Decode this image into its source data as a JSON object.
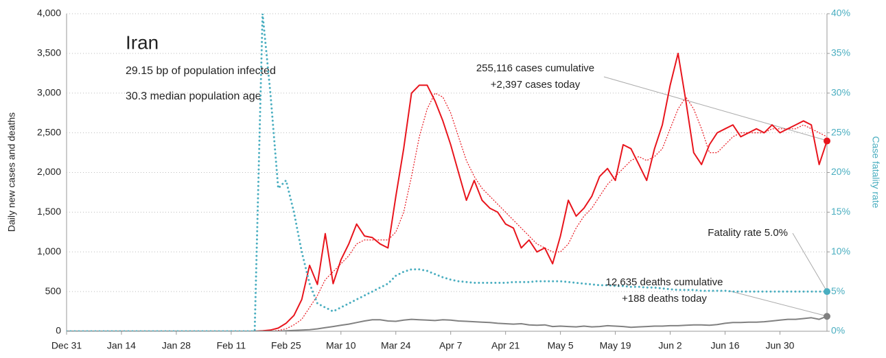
{
  "chart_data": {
    "type": "line",
    "title": "Iran",
    "subtitles": [
      "29.15 bp of population infected",
      "30.3 median population age"
    ],
    "ylabel": "Daily new cases and deaths",
    "y2label": "Case fatality rate",
    "categories": [
      "Dec 31",
      null,
      null,
      null,
      null,
      null,
      null,
      "Jan 14",
      null,
      null,
      null,
      null,
      null,
      null,
      "Jan 28",
      null,
      null,
      null,
      null,
      null,
      null,
      "Feb 11",
      null,
      null,
      null,
      null,
      null,
      null,
      "Feb 25",
      null,
      null,
      null,
      null,
      null,
      null,
      "Mar 10",
      null,
      null,
      null,
      null,
      null,
      null,
      "Mar 24",
      null,
      null,
      null,
      null,
      null,
      null,
      "Apr 7",
      null,
      null,
      null,
      null,
      null,
      null,
      "Apr 21",
      null,
      null,
      null,
      null,
      null,
      null,
      "May 5",
      null,
      null,
      null,
      null,
      null,
      null,
      "May 19",
      null,
      null,
      null,
      null,
      null,
      null,
      "Jun 2",
      null,
      null,
      null,
      null,
      null,
      null,
      "Jun 16",
      null,
      null,
      null,
      null,
      null,
      null,
      "Jun 30",
      null,
      null,
      null,
      null,
      null,
      null
    ],
    "series": [
      {
        "color": "#e8141c",
        "line_style": "solid",
        "width": 2,
        "values": [
          0,
          0,
          0,
          0,
          0,
          0,
          0,
          0,
          0,
          0,
          0,
          0,
          0,
          0,
          0,
          0,
          0,
          0,
          0,
          0,
          0,
          0,
          0,
          0,
          0,
          5,
          15,
          40,
          100,
          200,
          400,
          830,
          590,
          1230,
          600,
          900,
          1100,
          1350,
          1200,
          1180,
          1100,
          1050,
          1700,
          2300,
          3000,
          3100,
          3100,
          2900,
          2650,
          2350,
          2000,
          1650,
          1900,
          1650,
          1550,
          1500,
          1350,
          1300,
          1050,
          1150,
          1000,
          1050,
          850,
          1200,
          1650,
          1450,
          1550,
          1700,
          1950,
          2050,
          1900,
          2350,
          2300,
          2100,
          1900,
          2300,
          2600,
          3100,
          3500,
          2900,
          2250,
          2100,
          2350,
          2500,
          2550,
          2600,
          2450,
          2500,
          2550,
          2500,
          2600,
          2500,
          2550,
          2600,
          2650,
          2600,
          2100,
          2397
        ]
      },
      {
        "color": "#e8141c",
        "line_style": "dotted",
        "width": 1.2,
        "values": [
          0,
          0,
          0,
          0,
          0,
          0,
          0,
          0,
          0,
          0,
          0,
          0,
          0,
          0,
          0,
          0,
          0,
          0,
          0,
          0,
          0,
          0,
          0,
          0,
          0,
          0,
          0,
          10,
          30,
          80,
          150,
          300,
          450,
          650,
          750,
          850,
          950,
          1100,
          1150,
          1150,
          1150,
          1150,
          1250,
          1500,
          1950,
          2450,
          2800,
          3000,
          2950,
          2750,
          2450,
          2150,
          1950,
          1800,
          1700,
          1600,
          1500,
          1400,
          1300,
          1200,
          1100,
          1050,
          1000,
          1000,
          1100,
          1300,
          1450,
          1550,
          1700,
          1850,
          1950,
          2050,
          2150,
          2200,
          2150,
          2200,
          2300,
          2550,
          2800,
          2950,
          2800,
          2550,
          2250,
          2250,
          2350,
          2450,
          2500,
          2500,
          2500,
          2500,
          2550,
          2550,
          2550,
          2550,
          2600,
          2550,
          2500,
          2450
        ]
      },
      {
        "color": "#808080",
        "line_style": "solid",
        "width": 2,
        "values": [
          0,
          0,
          0,
          0,
          0,
          0,
          0,
          0,
          0,
          0,
          0,
          0,
          0,
          0,
          0,
          0,
          0,
          0,
          0,
          0,
          0,
          0,
          0,
          0,
          0,
          0,
          0,
          0,
          5,
          10,
          15,
          20,
          30,
          45,
          60,
          75,
          90,
          110,
          130,
          145,
          145,
          130,
          125,
          140,
          150,
          145,
          140,
          135,
          145,
          140,
          130,
          125,
          120,
          115,
          110,
          100,
          95,
          90,
          95,
          80,
          75,
          80,
          60,
          65,
          60,
          55,
          65,
          55,
          60,
          70,
          65,
          60,
          50,
          55,
          60,
          65,
          65,
          70,
          70,
          75,
          80,
          80,
          75,
          85,
          100,
          110,
          110,
          115,
          115,
          120,
          130,
          140,
          150,
          150,
          160,
          170,
          150,
          188
        ]
      },
      {
        "color": "#4aaec0",
        "line_style": "dotted",
        "width": 3,
        "axis": "y2",
        "values": [
          0,
          0,
          0,
          0,
          0,
          0,
          0,
          0,
          0,
          0,
          0,
          0,
          0,
          0,
          0,
          0,
          0,
          0,
          0,
          0,
          0,
          0,
          0,
          0,
          0,
          40,
          30,
          18,
          19,
          15,
          10,
          6,
          3.5,
          3,
          2.5,
          3,
          3.5,
          4,
          4.5,
          5,
          5.5,
          6,
          7,
          7.5,
          7.8,
          7.8,
          7.6,
          7.2,
          6.8,
          6.5,
          6.3,
          6.2,
          6.1,
          6.1,
          6.1,
          6.1,
          6.1,
          6.2,
          6.2,
          6.2,
          6.3,
          6.3,
          6.3,
          6.3,
          6.2,
          6.1,
          6.0,
          5.9,
          5.8,
          5.8,
          5.7,
          5.7,
          5.6,
          5.6,
          5.5,
          5.5,
          5.4,
          5.3,
          5.2,
          5.2,
          5.2,
          5.1,
          5.1,
          5.1,
          5.1,
          5.0,
          5.0,
          5.0,
          5.0,
          5.0,
          5.0,
          5.0,
          5.0,
          5.0,
          5.0,
          5.0,
          5.0,
          5.0
        ]
      }
    ],
    "ylim": [
      0,
      4000
    ],
    "yticks": [
      0,
      500,
      {
        "value": 1000,
        "label": "1,000"
      },
      {
        "value": 1500,
        "label": "1,500"
      },
      {
        "value": 2000,
        "label": "2,000"
      },
      {
        "value": 2500,
        "label": "2,500"
      },
      {
        "value": 3000,
        "label": "3,000"
      },
      {
        "value": 3500,
        "label": "3,500"
      },
      {
        "value": 4000,
        "label": "4,000"
      }
    ],
    "y2lim": [
      0,
      40
    ],
    "y2ticks": [
      {
        "value": 0,
        "label": "0%"
      },
      {
        "value": 5,
        "label": "5%"
      },
      {
        "value": 10,
        "label": "10%"
      },
      {
        "value": 15,
        "label": "15%"
      },
      {
        "value": 20,
        "label": "20%"
      },
      {
        "value": 25,
        "label": "25%"
      },
      {
        "value": 30,
        "label": "30%"
      },
      {
        "value": 35,
        "label": "35%"
      },
      {
        "value": 40,
        "label": "40%"
      }
    ],
    "grid": true,
    "annotations": [
      "255,116 cases cumulative",
      "+2,397 cases today",
      "Fatality rate 5.0%",
      "12,635 deaths cumulative",
      "+188 deaths today"
    ]
  }
}
